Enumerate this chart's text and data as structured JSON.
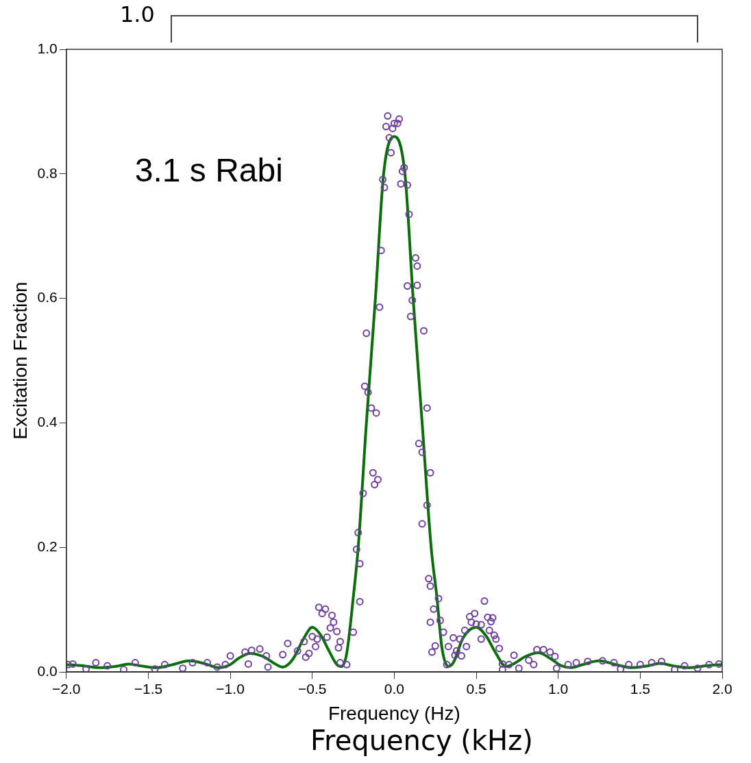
{
  "chart_data": {
    "type": "scatter",
    "xlabel": "Frequency (Hz)",
    "ylabel": "Excitation Fraction",
    "annotations": [
      "3.1 s Rabi",
      "1.0",
      "Frequency (kHz)"
    ],
    "xlim": [
      -2,
      2
    ],
    "ylim": [
      0,
      1
    ],
    "xticks": [
      {
        "value": -2,
        "label": "−2.0"
      },
      {
        "value": -1.5,
        "label": "−1.5"
      },
      {
        "value": -1,
        "label": "−1.0"
      },
      {
        "value": -0.5,
        "label": "−0.5"
      },
      {
        "value": 0,
        "label": "0.0"
      },
      {
        "value": 0.5,
        "label": "0.5"
      },
      {
        "value": 1,
        "label": "1.0"
      },
      {
        "value": 1.5,
        "label": "1.5"
      },
      {
        "value": 2,
        "label": "2.0"
      }
    ],
    "yticks": [
      {
        "value": 0,
        "label": "0.0"
      },
      {
        "value": 0.2,
        "label": "0.2"
      },
      {
        "value": 0.4,
        "label": "0.4"
      },
      {
        "value": 0.6,
        "label": "0.6"
      },
      {
        "value": 0.8,
        "label": "0.8"
      },
      {
        "value": 1,
        "label": "1.0"
      }
    ],
    "grid": false,
    "legend": false,
    "series": [
      {
        "type": "scatter",
        "marker": "circle",
        "color": "#7040a0",
        "x": [
          -1.99,
          -1.96,
          -1.88,
          -1.82,
          -1.75,
          -1.65,
          -1.58,
          -1.46,
          -1.4,
          -1.29,
          -1.23,
          -1.14,
          -1.08,
          -1.03,
          -1.0,
          -0.91,
          -0.89,
          -0.87,
          -0.82,
          -0.78,
          -0.77,
          -0.68,
          -0.65,
          -0.59,
          -0.55,
          -0.54,
          -0.52,
          -0.5,
          -0.48,
          -0.47,
          -0.46,
          -0.44,
          -0.42,
          -0.41,
          -0.39,
          -0.38,
          -0.37,
          -0.35,
          -0.34,
          -0.33,
          -0.33,
          -0.29,
          -0.25,
          -0.23,
          -0.22,
          -0.21,
          -0.21,
          -0.19,
          -0.18,
          -0.17,
          -0.16,
          -0.14,
          -0.13,
          -0.12,
          -0.11,
          -0.1,
          -0.09,
          -0.08,
          -0.07,
          -0.06,
          -0.05,
          -0.04,
          -0.03,
          -0.02,
          -0.01,
          0.0,
          0.02,
          0.03,
          0.04,
          0.05,
          0.06,
          0.08,
          0.08,
          0.09,
          0.1,
          0.11,
          0.13,
          0.14,
          0.14,
          0.15,
          0.17,
          0.17,
          0.18,
          0.2,
          0.2,
          0.21,
          0.22,
          0.22,
          0.22,
          0.23,
          0.24,
          0.25,
          0.27,
          0.28,
          0.3,
          0.32,
          0.33,
          0.36,
          0.37,
          0.38,
          0.4,
          0.41,
          0.43,
          0.44,
          0.46,
          0.47,
          0.49,
          0.5,
          0.53,
          0.53,
          0.55,
          0.57,
          0.58,
          0.59,
          0.6,
          0.61,
          0.62,
          0.64,
          0.66,
          0.66,
          0.7,
          0.73,
          0.76,
          0.82,
          0.85,
          0.87,
          0.91,
          0.95,
          0.98,
          0.99,
          1.06,
          1.11,
          1.18,
          1.27,
          1.34,
          1.38,
          1.43,
          1.5,
          1.57,
          1.63,
          1.71,
          1.77,
          1.85,
          1.92,
          1.98
        ],
        "values": [
          0.012,
          0.013,
          0.005,
          0.015,
          0.01,
          0.004,
          0.015,
          0.005,
          0.012,
          0.006,
          0.015,
          0.015,
          0.008,
          0.012,
          0.026,
          0.032,
          0.013,
          0.035,
          0.037,
          0.026,
          0.008,
          0.028,
          0.046,
          0.034,
          0.049,
          0.024,
          0.03,
          0.057,
          0.041,
          0.053,
          0.104,
          0.094,
          0.101,
          0.056,
          0.071,
          0.091,
          0.08,
          0.065,
          0.039,
          0.049,
          0.015,
          0.012,
          0.064,
          0.197,
          0.224,
          0.174,
          0.113,
          0.287,
          0.459,
          0.544,
          0.449,
          0.424,
          0.32,
          0.301,
          0.416,
          0.309,
          0.586,
          0.677,
          0.791,
          0.778,
          0.876,
          0.893,
          0.858,
          0.834,
          0.873,
          0.881,
          0.881,
          0.888,
          0.784,
          0.804,
          0.81,
          0.782,
          0.62,
          0.735,
          0.571,
          0.597,
          0.665,
          0.652,
          0.621,
          0.367,
          0.353,
          0.238,
          0.548,
          0.424,
          0.268,
          0.15,
          0.32,
          0.138,
          0.08,
          0.032,
          0.101,
          0.042,
          0.118,
          0.083,
          0.064,
          0.012,
          0.041,
          0.055,
          0.027,
          0.034,
          0.053,
          0.026,
          0.067,
          0.041,
          0.089,
          0.08,
          0.094,
          0.077,
          0.053,
          0.076,
          0.114,
          0.088,
          0.067,
          0.081,
          0.087,
          0.059,
          0.053,
          0.038,
          0.013,
          0.004,
          0.012,
          0.027,
          0.006,
          0.019,
          0.012,
          0.036,
          0.036,
          0.032,
          0.025,
          0.006,
          0.012,
          0.015,
          0.017,
          0.018,
          0.015,
          0.005,
          0.012,
          0.012,
          0.015,
          0.017,
          0.004,
          0.01,
          0.006,
          0.012,
          0.013
        ]
      },
      {
        "type": "line",
        "marker": "none",
        "line_style": "solid",
        "color": "#0a6e0a",
        "x": [
          -2,
          -1.9,
          -1.8,
          -1.7,
          -1.62,
          -1.55,
          -1.45,
          -1.35,
          -1.25,
          -1.15,
          -1.07,
          -1.0,
          -0.95,
          -0.88,
          -0.8,
          -0.72,
          -0.68,
          -0.62,
          -0.55,
          -0.5,
          -0.45,
          -0.4,
          -0.35,
          -0.32,
          -0.29,
          -0.25,
          -0.22,
          -0.17,
          -0.115,
          -0.065,
          0,
          0.065,
          0.115,
          0.17,
          0.225,
          0.26,
          0.29,
          0.33,
          0.36,
          0.42,
          0.5,
          0.56,
          0.62,
          0.68,
          0.72,
          0.8,
          0.88,
          0.95,
          1.02,
          1.08,
          1.15,
          1.25,
          1.35,
          1.45,
          1.55,
          1.62,
          1.7,
          1.8,
          1.9,
          2.0
        ],
        "values": [
          0.012,
          0.01,
          0.007,
          0.009,
          0.013,
          0.01,
          0.007,
          0.012,
          0.018,
          0.013,
          0.007,
          0.012,
          0.022,
          0.03,
          0.025,
          0.012,
          0.008,
          0.02,
          0.055,
          0.072,
          0.06,
          0.035,
          0.012,
          0.009,
          0.03,
          0.12,
          0.2,
          0.4,
          0.6,
          0.8,
          0.86,
          0.8,
          0.6,
          0.4,
          0.2,
          0.12,
          0.04,
          0.009,
          0.015,
          0.055,
          0.072,
          0.058,
          0.03,
          0.009,
          0.012,
          0.025,
          0.031,
          0.022,
          0.01,
          0.007,
          0.012,
          0.018,
          0.012,
          0.007,
          0.01,
          0.014,
          0.01,
          0.007,
          0.01,
          0.012
        ]
      }
    ]
  }
}
